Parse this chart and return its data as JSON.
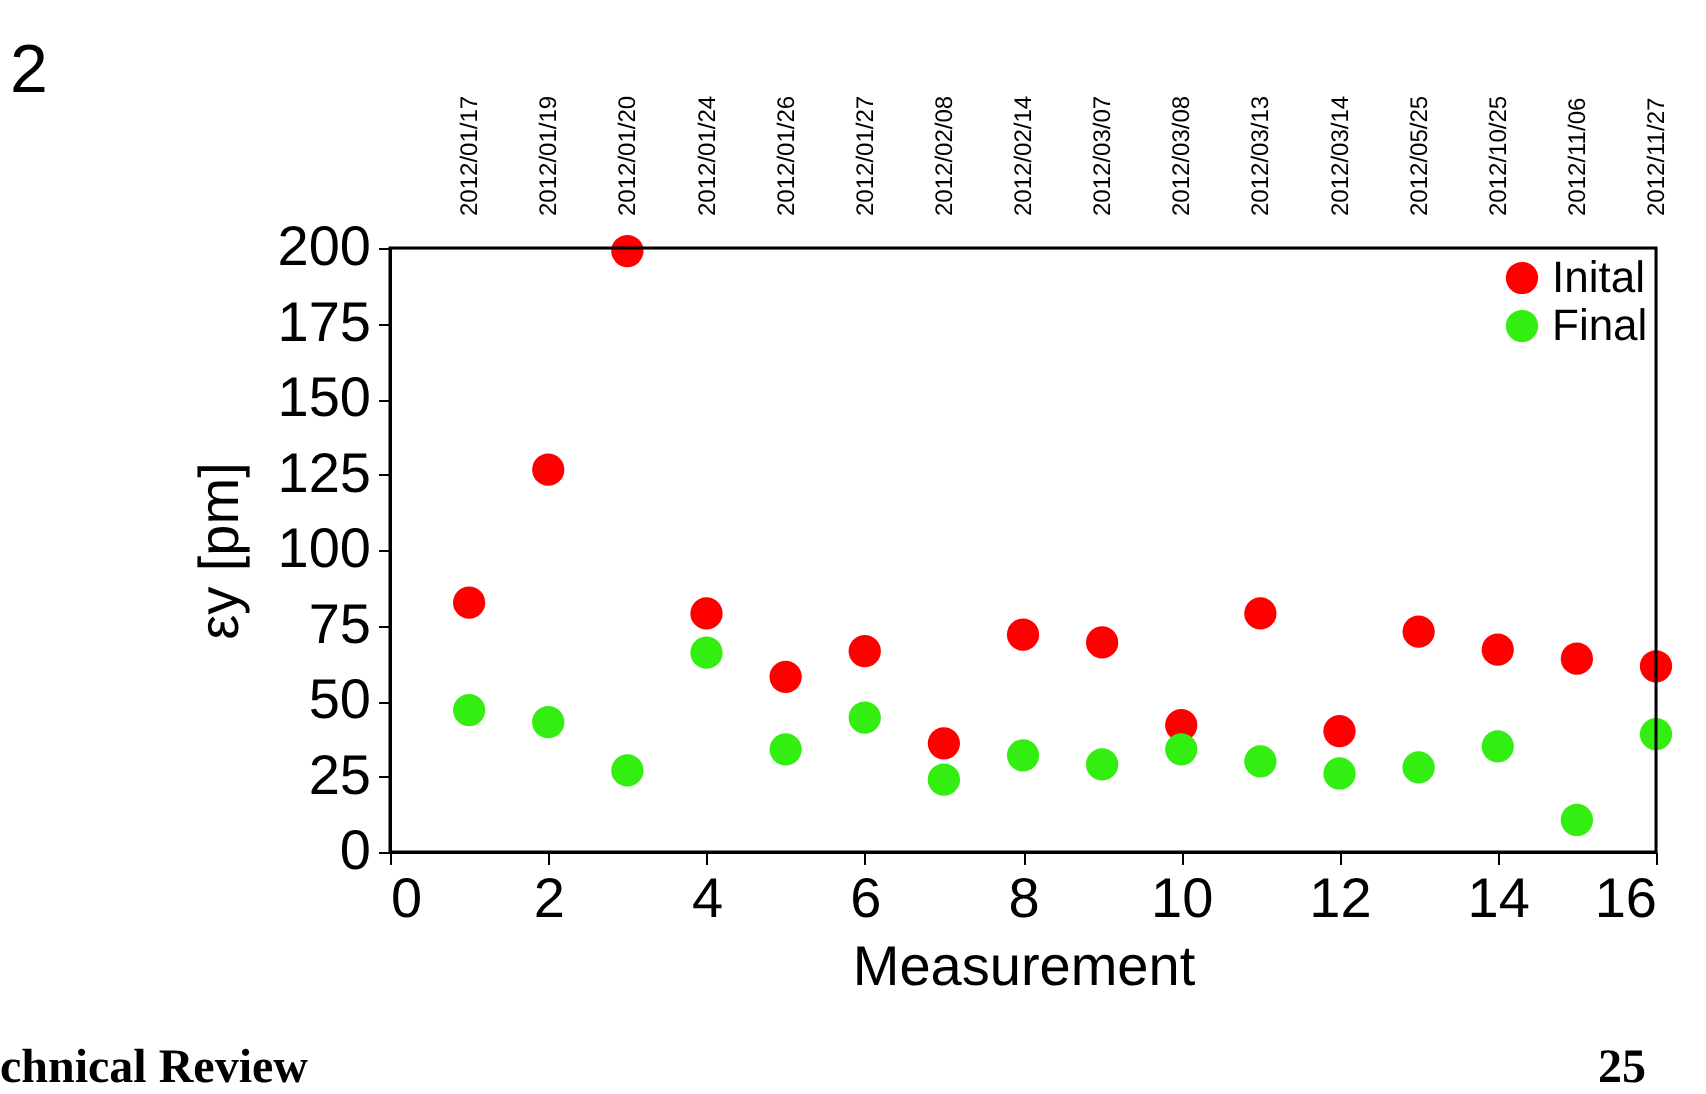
{
  "chart_data": {
    "type": "scatter",
    "xlabel": "Measurement",
    "ylabel": "εy [pm]",
    "x": [
      1,
      2,
      3,
      4,
      5,
      6,
      7,
      8,
      9,
      10,
      11,
      12,
      13,
      14,
      15,
      16
    ],
    "series": [
      {
        "name": "Inital",
        "color": "#ff0000",
        "values": [
          82.6,
          126.6,
          199,
          79,
          58,
          66.5,
          36,
          72,
          69.4,
          42,
          79,
          40,
          73,
          67,
          64,
          61.5
        ]
      },
      {
        "name": "Final",
        "color": "#33ee11",
        "values": [
          47,
          43,
          27,
          66,
          34,
          44.5,
          24,
          32,
          29,
          34,
          30,
          26,
          28,
          35,
          10.6,
          39
        ]
      }
    ],
    "xlim": [
      0,
      16
    ],
    "xticks": [
      0,
      2,
      4,
      6,
      8,
      10,
      12,
      14,
      16
    ],
    "ylim": [
      0,
      200
    ],
    "yticks": [
      0,
      25,
      50,
      75,
      100,
      125,
      150,
      175,
      200
    ],
    "legend": "top right",
    "marker": "circle",
    "grid": false,
    "annotations": [
      "2",
      "chnical Review",
      "25",
      "2012/01/17",
      "2012/01/19",
      "2012/01/20",
      "2012/01/24",
      "2012/01/26",
      "2012/01/27",
      "2012/02/08",
      "2012/02/14",
      "2012/03/07",
      "2012/03/08",
      "2012/03/13",
      "2012/03/14",
      "2012/05/25",
      "2012/10/25",
      "2012/11/06",
      "2012/11/27"
    ]
  }
}
